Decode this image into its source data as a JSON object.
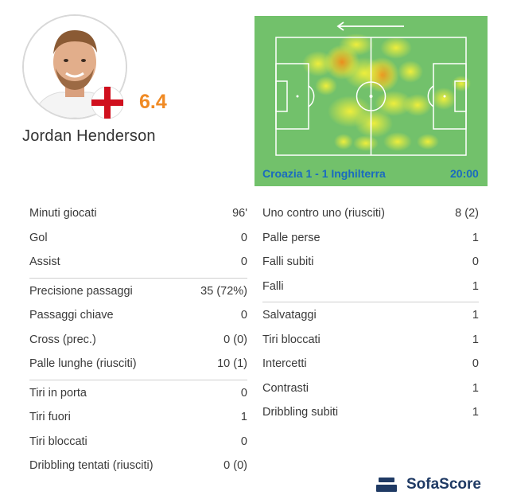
{
  "player": {
    "name": "Jordan Henderson",
    "rating": "6.4"
  },
  "heatmap": {
    "match": "Croazia 1 - 1 Inghilterra",
    "time": "20:00",
    "direction": "left"
  },
  "stats_left": [
    {
      "label": "Minuti giocati",
      "value": "96'"
    },
    {
      "label": "Gol",
      "value": "0"
    },
    {
      "label": "Assist",
      "value": "0"
    },
    {
      "label": "Precisione passaggi",
      "value": "35 (72%)"
    },
    {
      "label": "Passaggi chiave",
      "value": "0"
    },
    {
      "label": "Cross (prec.)",
      "value": "0 (0)"
    },
    {
      "label": "Palle lunghe (riusciti)",
      "value": "10 (1)"
    },
    {
      "label": "Tiri in porta",
      "value": "0"
    },
    {
      "label": "Tiri fuori",
      "value": "1"
    },
    {
      "label": "Tiri bloccati",
      "value": "0"
    },
    {
      "label": "Dribbling tentati (riusciti)",
      "value": "0 (0)"
    }
  ],
  "stats_right": [
    {
      "label": "Uno contro uno (riusciti)",
      "value": "8 (2)"
    },
    {
      "label": "Palle perse",
      "value": "1"
    },
    {
      "label": "Falli subiti",
      "value": "0"
    },
    {
      "label": "Falli",
      "value": "1"
    },
    {
      "label": "Salvataggi",
      "value": "1"
    },
    {
      "label": "Tiri bloccati",
      "value": "1"
    },
    {
      "label": "Intercetti",
      "value": "0"
    },
    {
      "label": "Contrasti",
      "value": "1"
    },
    {
      "label": "Dribbling subiti",
      "value": "1"
    }
  ],
  "brand": {
    "name": "SofaScore"
  },
  "colors": {
    "rating": "#f08a24",
    "pitch": "#72c16b",
    "link": "#1a6bbf",
    "brand": "#1f3a64"
  }
}
